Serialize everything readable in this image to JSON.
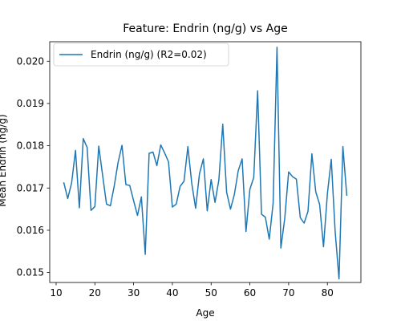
{
  "chart_data": {
    "type": "line",
    "title": "Feature: Endrin (ng/g) vs Age",
    "xlabel": "Age",
    "ylabel": "Mean Endrin (ng/g)",
    "xlim": [
      8.35,
      88.65
    ],
    "ylim": [
      0.014765,
      0.020461
    ],
    "xticks": [
      10,
      20,
      30,
      40,
      50,
      60,
      70,
      80
    ],
    "yticks": [
      0.015,
      0.016,
      0.017,
      0.018,
      0.019,
      0.02
    ],
    "grid": false,
    "legend_position": "top-left",
    "series": [
      {
        "name": "Endrin (ng/g) (R2=0.02)",
        "color": "#1f77b4",
        "x": [
          12,
          13,
          14,
          15,
          16,
          17,
          18,
          19,
          20,
          21,
          22,
          23,
          24,
          25,
          26,
          27,
          28,
          29,
          30,
          31,
          32,
          33,
          34,
          35,
          36,
          37,
          38,
          39,
          40,
          41,
          42,
          43,
          44,
          45,
          46,
          47,
          48,
          49,
          50,
          51,
          52,
          53,
          54,
          55,
          56,
          57,
          58,
          59,
          60,
          61,
          62,
          63,
          64,
          65,
          66,
          67,
          68,
          69,
          70,
          71,
          72,
          73,
          74,
          75,
          76,
          77,
          78,
          79,
          80,
          81,
          82,
          83,
          84,
          85
        ],
        "y": [
          0.01712,
          0.01675,
          0.01712,
          0.01789,
          0.01653,
          0.01817,
          0.01796,
          0.01647,
          0.01656,
          0.01799,
          0.0173,
          0.01662,
          0.01658,
          0.01705,
          0.01761,
          0.01801,
          0.01708,
          0.01706,
          0.0167,
          0.01635,
          0.01679,
          0.01543,
          0.01782,
          0.01785,
          0.01753,
          0.01802,
          0.01783,
          0.01762,
          0.01655,
          0.01662,
          0.01704,
          0.01716,
          0.01798,
          0.01711,
          0.01652,
          0.01734,
          0.01769,
          0.01646,
          0.0172,
          0.01666,
          0.01719,
          0.01851,
          0.0169,
          0.0165,
          0.01685,
          0.01741,
          0.01769,
          0.01597,
          0.01697,
          0.01725,
          0.0193,
          0.01638,
          0.01631,
          0.01579,
          0.01664,
          0.02033,
          0.01558,
          0.01628,
          0.01738,
          0.01727,
          0.01721,
          0.0163,
          0.01617,
          0.01645,
          0.01781,
          0.01691,
          0.01661,
          0.01561,
          0.01686,
          0.01768,
          0.01598,
          0.01485,
          0.01798,
          0.01683
        ]
      }
    ]
  }
}
